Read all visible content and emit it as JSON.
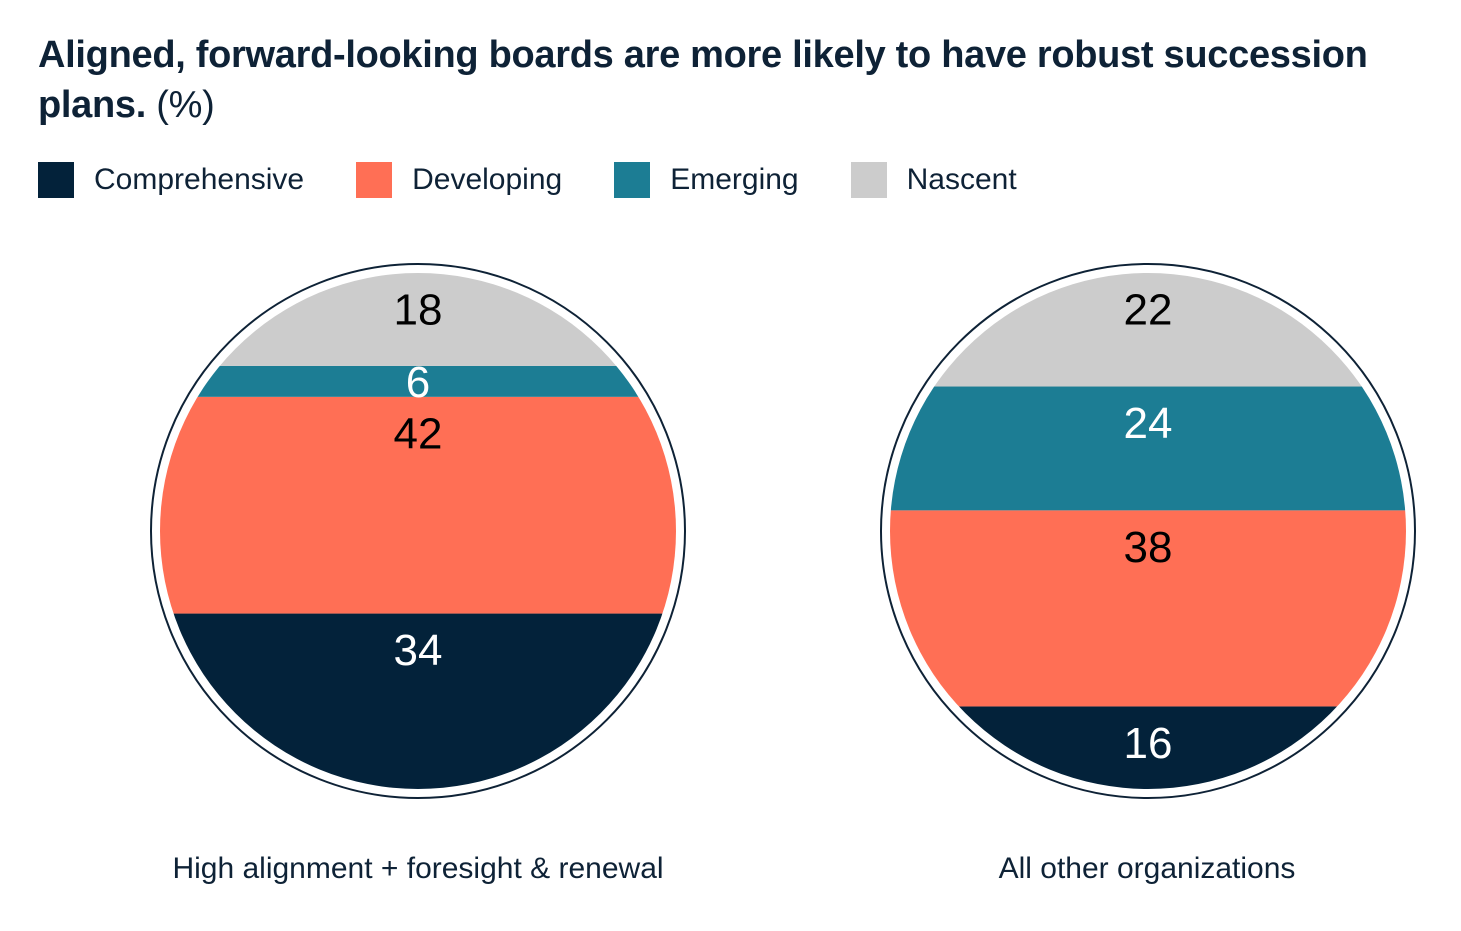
{
  "chart_data": {
    "type": "pie",
    "title": "Aligned, forward-looking boards are more likely to have robust succession plans.",
    "unit_label": "(%)",
    "categories": [
      "Comprehensive",
      "Developing",
      "Emerging",
      "Nascent"
    ],
    "colors": {
      "Comprehensive": "#03223a",
      "Developing": "#ff6f55",
      "Emerging": "#1c7d94",
      "Nascent": "#cccccc"
    },
    "label_colors": {
      "Comprehensive": "#ffffff",
      "Developing": "#000000",
      "Emerging": "#ffffff",
      "Nascent": "#000000"
    },
    "legend_position": "top-left",
    "series": [
      {
        "name": "High alignment + foresight & renewal",
        "values": {
          "Comprehensive": 34,
          "Developing": 42,
          "Emerging": 6,
          "Nascent": 18
        }
      },
      {
        "name": "All other organizations",
        "values": {
          "Comprehensive": 16,
          "Developing": 38,
          "Emerging": 24,
          "Nascent": 22
        }
      }
    ]
  }
}
